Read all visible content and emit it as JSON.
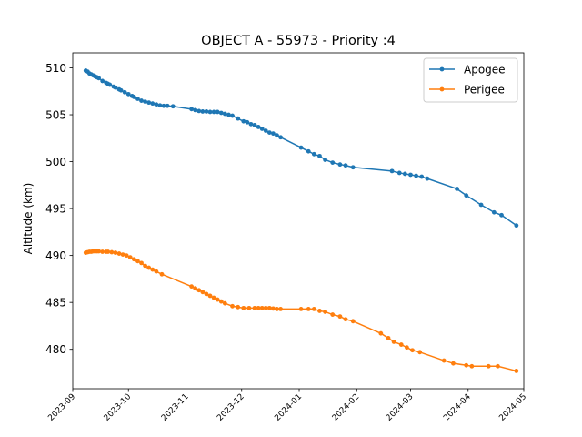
{
  "chart_data": {
    "type": "line",
    "title": "OBJECT A - 55973 - Priority :4",
    "xlabel": "",
    "ylabel": "Altitude (km)",
    "x_type": "date",
    "xlim": [
      "2023-09-01",
      "2024-05-01"
    ],
    "ylim": [
      475.8,
      511.6
    ],
    "x_ticks": [
      "2023-09",
      "2023-10",
      "2023-11",
      "2023-12",
      "2024-01",
      "2024-02",
      "2024-03",
      "2024-04",
      "2024-05"
    ],
    "y_ticks": [
      480,
      485,
      490,
      495,
      500,
      505,
      510
    ],
    "grid": false,
    "legend": "top-right",
    "series": [
      {
        "name": "Apogee",
        "color": "#1f77b4",
        "marker": "circle",
        "points": [
          [
            "2023-09-08",
            509.7
          ],
          [
            "2023-09-09",
            509.6
          ],
          [
            "2023-09-10",
            509.4
          ],
          [
            "2023-09-11",
            509.3
          ],
          [
            "2023-09-12",
            509.2
          ],
          [
            "2023-09-13",
            509.1
          ],
          [
            "2023-09-14",
            509.0
          ],
          [
            "2023-09-15",
            508.9
          ],
          [
            "2023-09-17",
            508.6
          ],
          [
            "2023-09-19",
            508.4
          ],
          [
            "2023-09-20",
            508.3
          ],
          [
            "2023-09-21",
            508.2
          ],
          [
            "2023-09-23",
            508.0
          ],
          [
            "2023-09-24",
            507.9
          ],
          [
            "2023-09-26",
            507.7
          ],
          [
            "2023-09-27",
            507.6
          ],
          [
            "2023-09-29",
            507.4
          ],
          [
            "2023-10-01",
            507.2
          ],
          [
            "2023-10-03",
            507.0
          ],
          [
            "2023-10-04",
            506.9
          ],
          [
            "2023-10-06",
            506.7
          ],
          [
            "2023-10-08",
            506.5
          ],
          [
            "2023-10-10",
            506.4
          ],
          [
            "2023-10-12",
            506.3
          ],
          [
            "2023-10-14",
            506.2
          ],
          [
            "2023-10-16",
            506.1
          ],
          [
            "2023-10-18",
            506.0
          ],
          [
            "2023-10-20",
            505.95
          ],
          [
            "2023-10-22",
            505.95
          ],
          [
            "2023-10-25",
            505.9
          ],
          [
            "2023-11-04",
            505.6
          ],
          [
            "2023-11-06",
            505.5
          ],
          [
            "2023-11-08",
            505.4
          ],
          [
            "2023-11-10",
            505.35
          ],
          [
            "2023-11-12",
            505.35
          ],
          [
            "2023-11-14",
            505.3
          ],
          [
            "2023-11-16",
            505.3
          ],
          [
            "2023-11-18",
            505.3
          ],
          [
            "2023-11-20",
            505.2
          ],
          [
            "2023-11-22",
            505.1
          ],
          [
            "2023-11-24",
            505.0
          ],
          [
            "2023-11-26",
            504.9
          ],
          [
            "2023-11-29",
            504.6
          ],
          [
            "2023-12-02",
            504.3
          ],
          [
            "2023-12-04",
            504.2
          ],
          [
            "2023-12-06",
            504.0
          ],
          [
            "2023-12-08",
            503.9
          ],
          [
            "2023-12-10",
            503.7
          ],
          [
            "2023-12-12",
            503.5
          ],
          [
            "2023-12-14",
            503.3
          ],
          [
            "2023-12-16",
            503.1
          ],
          [
            "2023-12-18",
            503.0
          ],
          [
            "2023-12-20",
            502.8
          ],
          [
            "2023-12-22",
            502.6
          ],
          [
            "2024-01-02",
            501.5
          ],
          [
            "2024-01-06",
            501.1
          ],
          [
            "2024-01-09",
            500.8
          ],
          [
            "2024-01-12",
            500.6
          ],
          [
            "2024-01-15",
            500.2
          ],
          [
            "2024-01-19",
            499.9
          ],
          [
            "2024-01-23",
            499.7
          ],
          [
            "2024-01-26",
            499.6
          ],
          [
            "2024-01-30",
            499.4
          ],
          [
            "2024-02-20",
            499.0
          ],
          [
            "2024-02-24",
            498.8
          ],
          [
            "2024-02-27",
            498.7
          ],
          [
            "2024-03-01",
            498.6
          ],
          [
            "2024-03-04",
            498.5
          ],
          [
            "2024-03-07",
            498.4
          ],
          [
            "2024-03-10",
            498.2
          ],
          [
            "2024-03-26",
            497.1
          ],
          [
            "2024-03-31",
            496.4
          ],
          [
            "2024-04-08",
            495.4
          ],
          [
            "2024-04-15",
            494.6
          ],
          [
            "2024-04-19",
            494.3
          ],
          [
            "2024-04-27",
            493.2
          ]
        ]
      },
      {
        "name": "Perigee",
        "color": "#ff7f0e",
        "marker": "circle",
        "points": [
          [
            "2023-09-08",
            490.3
          ],
          [
            "2023-09-09",
            490.35
          ],
          [
            "2023-09-10",
            490.4
          ],
          [
            "2023-09-11",
            490.4
          ],
          [
            "2023-09-12",
            490.45
          ],
          [
            "2023-09-13",
            490.45
          ],
          [
            "2023-09-14",
            490.45
          ],
          [
            "2023-09-15",
            490.45
          ],
          [
            "2023-09-17",
            490.4
          ],
          [
            "2023-09-19",
            490.4
          ],
          [
            "2023-09-20",
            490.4
          ],
          [
            "2023-09-22",
            490.35
          ],
          [
            "2023-09-24",
            490.3
          ],
          [
            "2023-09-26",
            490.2
          ],
          [
            "2023-09-28",
            490.1
          ],
          [
            "2023-09-30",
            490.0
          ],
          [
            "2023-10-02",
            489.8
          ],
          [
            "2023-10-04",
            489.6
          ],
          [
            "2023-10-06",
            489.4
          ],
          [
            "2023-10-08",
            489.2
          ],
          [
            "2023-10-10",
            488.9
          ],
          [
            "2023-10-12",
            488.7
          ],
          [
            "2023-10-14",
            488.5
          ],
          [
            "2023-10-16",
            488.3
          ],
          [
            "2023-10-19",
            488.0
          ],
          [
            "2023-11-04",
            486.7
          ],
          [
            "2023-11-06",
            486.5
          ],
          [
            "2023-11-08",
            486.3
          ],
          [
            "2023-11-10",
            486.1
          ],
          [
            "2023-11-12",
            485.9
          ],
          [
            "2023-11-14",
            485.7
          ],
          [
            "2023-11-16",
            485.5
          ],
          [
            "2023-11-18",
            485.3
          ],
          [
            "2023-11-20",
            485.1
          ],
          [
            "2023-11-22",
            484.9
          ],
          [
            "2023-11-26",
            484.6
          ],
          [
            "2023-11-29",
            484.5
          ],
          [
            "2023-12-02",
            484.4
          ],
          [
            "2023-12-05",
            484.4
          ],
          [
            "2023-12-08",
            484.4
          ],
          [
            "2023-12-10",
            484.4
          ],
          [
            "2023-12-12",
            484.4
          ],
          [
            "2023-12-14",
            484.4
          ],
          [
            "2023-12-16",
            484.4
          ],
          [
            "2023-12-18",
            484.35
          ],
          [
            "2023-12-20",
            484.3
          ],
          [
            "2023-12-22",
            484.3
          ],
          [
            "2024-01-02",
            484.3
          ],
          [
            "2024-01-06",
            484.3
          ],
          [
            "2024-01-09",
            484.3
          ],
          [
            "2024-01-12",
            484.1
          ],
          [
            "2024-01-15",
            484.0
          ],
          [
            "2024-01-19",
            483.7
          ],
          [
            "2024-01-23",
            483.5
          ],
          [
            "2024-01-26",
            483.2
          ],
          [
            "2024-01-30",
            483.0
          ],
          [
            "2024-02-14",
            481.7
          ],
          [
            "2024-02-18",
            481.2
          ],
          [
            "2024-02-21",
            480.8
          ],
          [
            "2024-02-25",
            480.5
          ],
          [
            "2024-02-28",
            480.2
          ],
          [
            "2024-03-02",
            479.9
          ],
          [
            "2024-03-06",
            479.7
          ],
          [
            "2024-03-19",
            478.8
          ],
          [
            "2024-03-24",
            478.5
          ],
          [
            "2024-03-31",
            478.3
          ],
          [
            "2024-04-03",
            478.2
          ],
          [
            "2024-04-12",
            478.2
          ],
          [
            "2024-04-17",
            478.2
          ],
          [
            "2024-04-27",
            477.7
          ]
        ]
      }
    ]
  }
}
